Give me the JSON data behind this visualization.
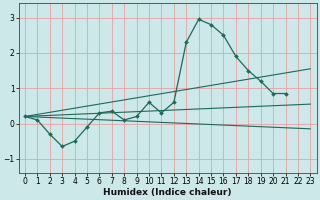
{
  "xlabel": "Humidex (Indice chaleur)",
  "background_color": "#cce8e8",
  "grid_color": "#e8a0a0",
  "line_color": "#1a6b5a",
  "xlim": [
    -0.5,
    23.5
  ],
  "ylim": [
    -1.4,
    3.4
  ],
  "yticks": [
    -1,
    0,
    1,
    2,
    3
  ],
  "xticks": [
    0,
    1,
    2,
    3,
    4,
    5,
    6,
    7,
    8,
    9,
    10,
    11,
    12,
    13,
    14,
    15,
    16,
    17,
    18,
    19,
    20,
    21,
    22,
    23
  ],
  "curve1_x": [
    0,
    1,
    2,
    3,
    4,
    5,
    6,
    7,
    8,
    9,
    10,
    11,
    12,
    13,
    14,
    15,
    16,
    17,
    18,
    19,
    20,
    21
  ],
  "curve1_y": [
    0.2,
    0.1,
    -0.3,
    -0.65,
    -0.5,
    -0.1,
    0.3,
    0.35,
    0.1,
    0.2,
    0.6,
    0.3,
    0.6,
    2.3,
    2.95,
    2.8,
    2.5,
    1.9,
    1.5,
    1.2,
    0.85,
    0.85
  ],
  "line1_x": [
    0,
    23
  ],
  "line1_y": [
    0.2,
    0.55
  ],
  "line2_x": [
    0,
    23
  ],
  "line2_y": [
    0.2,
    -0.15
  ],
  "line3_x": [
    0,
    23
  ],
  "line3_y": [
    0.2,
    1.55
  ]
}
